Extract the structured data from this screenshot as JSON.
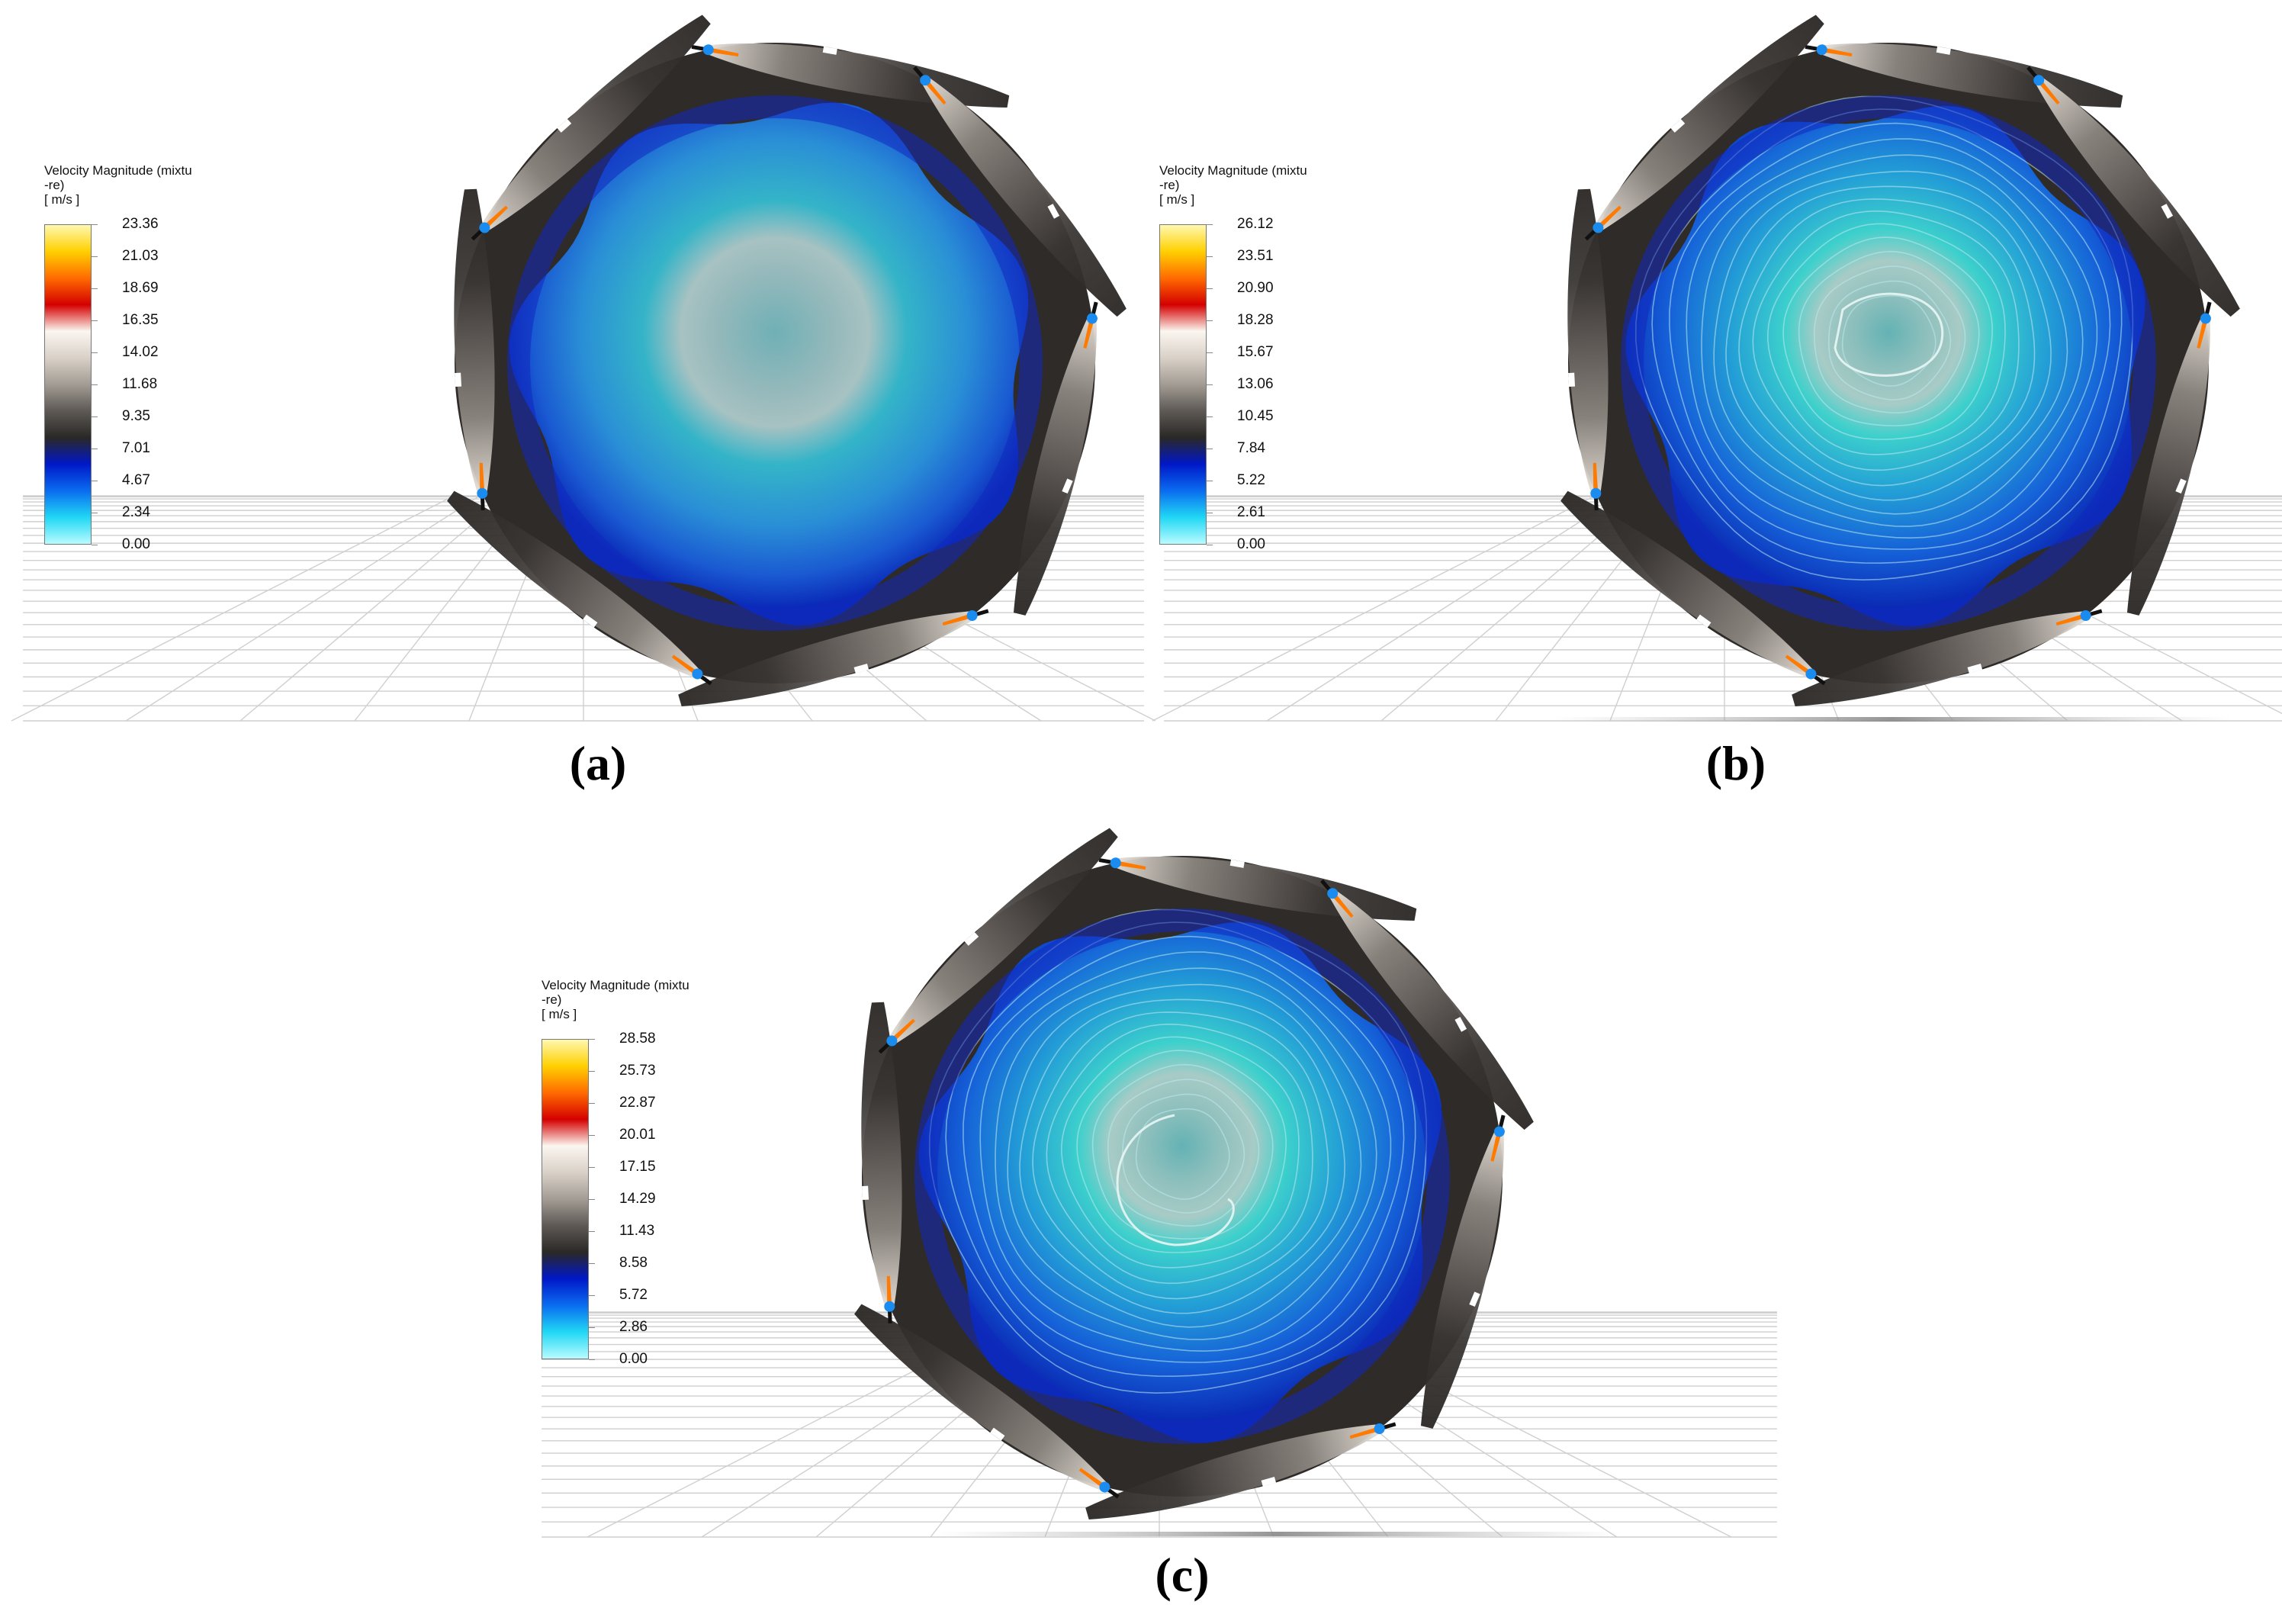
{
  "figure": {
    "panels": [
      {
        "id": "a",
        "caption": "(a)",
        "legend": {
          "title": "Velocity Magnitude (mixtu\n-re)",
          "unit": "[ m/s ]",
          "ticks": [
            "23.36",
            "21.03",
            "18.69",
            "16.35",
            "14.02",
            "11.68",
            "9.35",
            "7.01",
            "4.67",
            "2.34",
            "0.00"
          ]
        },
        "contour_lines": false
      },
      {
        "id": "b",
        "caption": "(b)",
        "legend": {
          "title": "Velocity Magnitude (mixtu\n-re)",
          "unit": "[ m/s ]",
          "ticks": [
            "26.12",
            "23.51",
            "20.90",
            "18.28",
            "15.67",
            "13.06",
            "10.45",
            "7.84",
            "5.22",
            "2.61",
            "0.00"
          ]
        },
        "contour_lines": true
      },
      {
        "id": "c",
        "caption": "(c)",
        "legend": {
          "title": "Velocity Magnitude (mixtu\n-re)",
          "unit": "[ m/s ]",
          "ticks": [
            "28.58",
            "25.73",
            "22.87",
            "20.01",
            "17.15",
            "14.29",
            "11.43",
            "8.58",
            "5.72",
            "2.86",
            "0.00"
          ]
        },
        "contour_lines": true
      }
    ],
    "colormap": {
      "stops": [
        "#fff8b0",
        "#ffd000",
        "#ff6a00",
        "#d40000",
        "#fbf6f0",
        "#d9d1c8",
        "#a39c94",
        "#5e5955",
        "#2a2826",
        "#0018c8",
        "#0a6cf0",
        "#20d8f4",
        "#b8fbff"
      ]
    },
    "colors": {
      "inner_fluid": "#1a50d0",
      "mid_fluid": "#2aa6d4",
      "core_fluid": "#a6c4c4",
      "jet_dark": "#3a3634",
      "jet_light": "#bdb7b1",
      "grid_line": "#cfcfcf"
    }
  }
}
